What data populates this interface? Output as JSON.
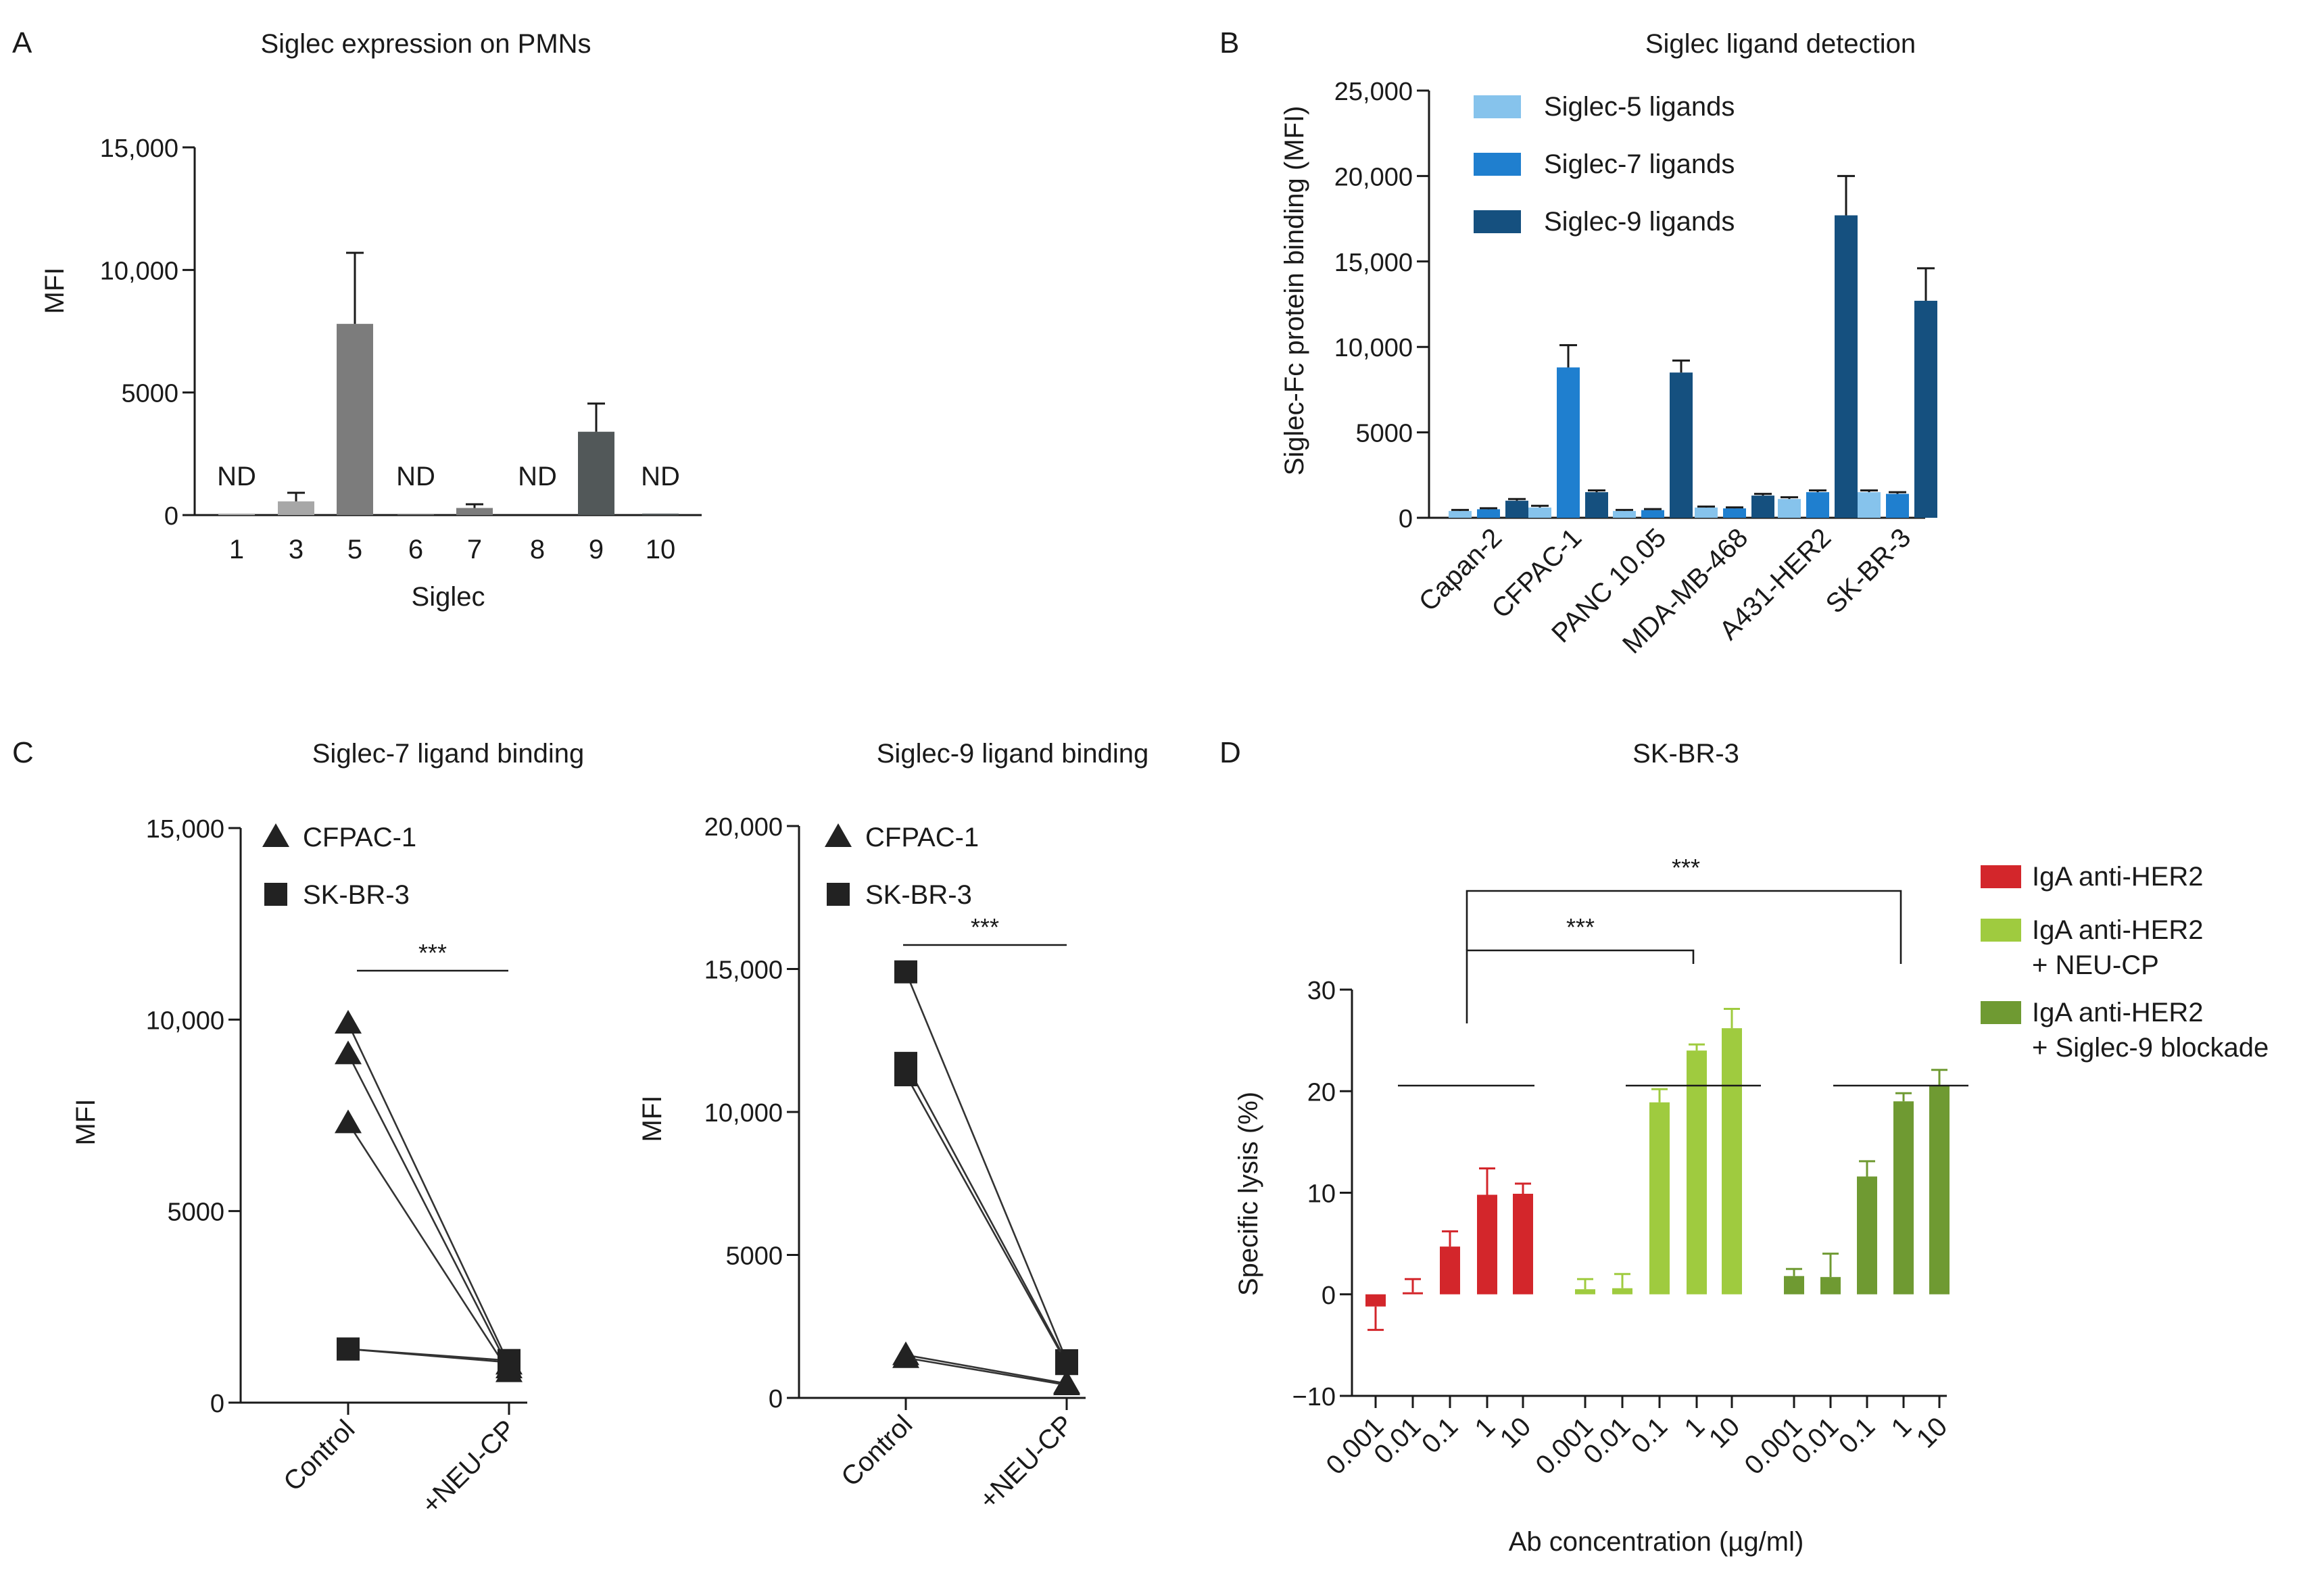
{
  "colors": {
    "axis": "#1a1a1a",
    "a_light": "#a7a7a7",
    "a_mid": "#7c7c7c",
    "a_dark": "#525859",
    "siglec5": "#86c3ec",
    "siglec7": "#1f7fcf",
    "siglec9": "#15507f",
    "iga": "#d3262b",
    "neu": "#9fcb3f",
    "blk": "#6f9a32",
    "marker": "#222222"
  },
  "chart_data": [
    {
      "id": "A",
      "panel_letter": "A",
      "type": "bar",
      "title": "Siglec expression on PMNs",
      "xlabel": "Siglec",
      "ylabel": "MFI",
      "ylim": [
        0,
        15000
      ],
      "yticks": [
        0,
        5000,
        10000,
        15000
      ],
      "ytick_labels": [
        "0",
        "5000",
        "10,000",
        "15,000"
      ],
      "categories": [
        "1",
        "3",
        "5",
        "6",
        "7",
        "8",
        "9",
        "10"
      ],
      "values": [
        60,
        560,
        7800,
        20,
        290,
        0,
        3400,
        60
      ],
      "errors": [
        0,
        350,
        2900,
        0,
        150,
        0,
        1150,
        0
      ],
      "bar_colors": [
        "a_light",
        "a_light",
        "a_mid",
        "a_mid",
        "a_mid",
        "a_dark",
        "a_dark",
        "a_dark"
      ],
      "annotations": [
        "ND",
        "",
        "",
        "ND",
        "",
        "ND",
        "",
        "ND"
      ]
    },
    {
      "id": "B",
      "panel_letter": "B",
      "type": "bar",
      "title": "Siglec ligand detection",
      "xlabel": "",
      "ylabel": "Siglec-Fc protein binding (MFI)",
      "ylim": [
        0,
        25000
      ],
      "yticks": [
        0,
        5000,
        10000,
        15000,
        20000,
        25000
      ],
      "ytick_labels": [
        "0",
        "5000",
        "10,000",
        "15,000",
        "20,000",
        "25,000"
      ],
      "categories": [
        "Capan-2",
        "CFPAC-1",
        "PANC 10.05",
        "MDA-MB-468",
        "A431-HER2",
        "SK-BR-3"
      ],
      "legend_position": "top-left",
      "series": [
        {
          "name": "Siglec-5 ligands",
          "color": "siglec5",
          "values": [
            400,
            600,
            400,
            600,
            1100,
            1500
          ],
          "errors": [
            60,
            100,
            60,
            60,
            100,
            100
          ]
        },
        {
          "name": "Siglec-7 ligands",
          "color": "siglec7",
          "values": [
            500,
            8800,
            450,
            550,
            1500,
            1400
          ],
          "errors": [
            60,
            1300,
            60,
            60,
            100,
            100
          ]
        },
        {
          "name": "Siglec-9 ligands",
          "color": "siglec9",
          "values": [
            1000,
            1500,
            8500,
            1300,
            17700,
            12700
          ],
          "errors": [
            100,
            100,
            700,
            100,
            2300,
            1900
          ]
        }
      ]
    },
    {
      "id": "C1",
      "panel_letter": "C",
      "type": "scatter",
      "title": "Siglec-7 ligand binding",
      "xlabel": "",
      "ylabel": "MFI",
      "ylim": [
        0,
        15000
      ],
      "yticks": [
        0,
        5000,
        10000,
        15000
      ],
      "ytick_labels": [
        "0",
        "5000",
        "10,000",
        "15,000"
      ],
      "categories": [
        "Control",
        "+NEU-CP"
      ],
      "significance": "***",
      "series": [
        {
          "name": "CFPAC-1",
          "marker": "triangle",
          "pairs": [
            [
              9900,
              1000
            ],
            [
              9100,
              900
            ],
            [
              7300,
              800
            ]
          ]
        },
        {
          "name": "SK-BR-3",
          "marker": "square",
          "pairs": [
            [
              1400,
              1100
            ],
            [
              1400,
              1050
            ]
          ]
        }
      ]
    },
    {
      "id": "C2",
      "panel_letter": "",
      "type": "scatter",
      "title": "Siglec-9 ligand binding",
      "xlabel": "",
      "ylabel": "MFI",
      "ylim": [
        0,
        20000
      ],
      "yticks": [
        0,
        5000,
        10000,
        15000,
        20000
      ],
      "ytick_labels": [
        "0",
        "5000",
        "10,000",
        "15,000",
        "20,000"
      ],
      "categories": [
        "Control",
        "+NEU-CP"
      ],
      "significance": "***",
      "series": [
        {
          "name": "CFPAC-1",
          "marker": "triangle",
          "pairs": [
            [
              1500,
              500
            ],
            [
              1400,
              450
            ]
          ]
        },
        {
          "name": "SK-BR-3",
          "marker": "square",
          "pairs": [
            [
              14900,
              1300
            ],
            [
              11700,
              1250
            ],
            [
              11300,
              1200
            ]
          ]
        }
      ]
    },
    {
      "id": "D",
      "panel_letter": "D",
      "type": "bar",
      "title": "SK-BR-3",
      "xlabel": "Ab concentration (µg/ml)",
      "ylabel": "Specific lysis (%)",
      "ylim": [
        -10,
        30
      ],
      "yticks": [
        -10,
        0,
        10,
        20,
        30
      ],
      "ytick_labels": [
        "−10",
        "0",
        "10",
        "20",
        "30"
      ],
      "categories": [
        "0.001",
        "0.01",
        "0.1",
        "1",
        "10"
      ],
      "significance": [
        "***",
        "***"
      ],
      "legend_position": "right",
      "series": [
        {
          "name": "IgA anti-HER2",
          "color": "iga",
          "values": [
            -1.2,
            0.2,
            4.7,
            9.8,
            9.9
          ],
          "errors": [
            2.3,
            1.3,
            1.5,
            2.6,
            1.0
          ]
        },
        {
          "name": "IgA anti-HER2 + NEU-CP",
          "color": "neu",
          "values": [
            0.5,
            0.6,
            18.9,
            24.0,
            26.2
          ],
          "errors": [
            1.0,
            1.4,
            1.3,
            0.6,
            1.9
          ]
        },
        {
          "name": "IgA anti-HER2 + Siglec-9 blockade",
          "color": "blk",
          "values": [
            1.8,
            1.7,
            11.6,
            19.0,
            20.5
          ],
          "errors": [
            0.7,
            2.3,
            1.5,
            0.8,
            1.6
          ]
        }
      ],
      "legend_labels": [
        [
          "IgA anti-HER2"
        ],
        [
          "IgA anti-HER2",
          "+ NEU-CP"
        ],
        [
          "IgA anti-HER2",
          "+ Siglec-9 blockade"
        ]
      ]
    }
  ]
}
